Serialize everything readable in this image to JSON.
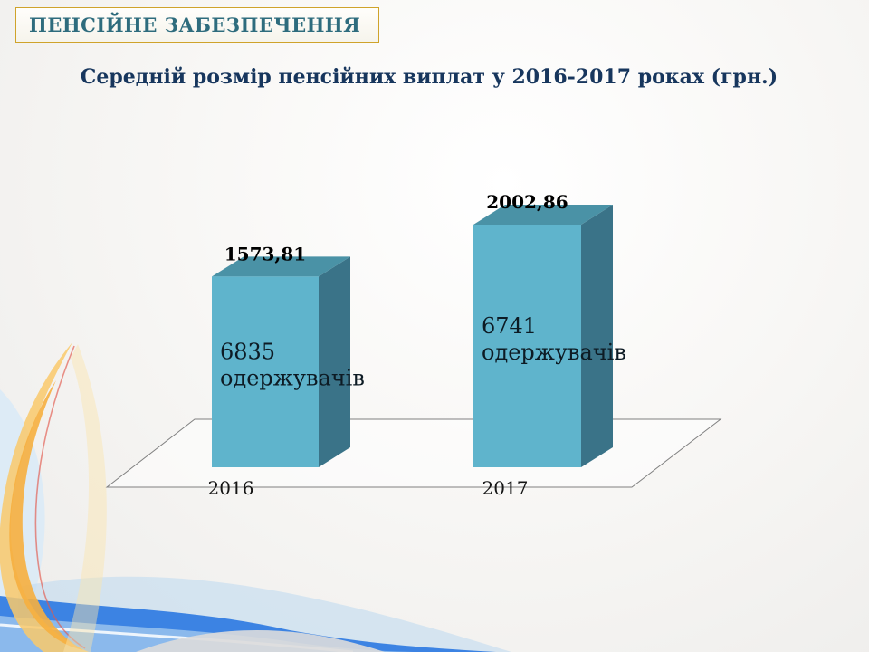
{
  "slide": {
    "header": {
      "title": "ПЕНСІЙНЕ ЗАБЕЗПЕЧЕННЯ"
    },
    "title": "Середній розмір пенсійних виплат у 2016-2017 роках (грн.)"
  },
  "colors": {
    "header_text": "#2E6C7D",
    "header_border": "#CFA32B",
    "title_text": "#17365D",
    "bar_front": "#5FB4CC",
    "bar_top": "#4A92A6",
    "bar_side": "#3A7388",
    "floor_stroke": "#808080",
    "accent_orange": "#F6AF3F",
    "accent_blue_wave": "#2F7BE2"
  },
  "chart_data": {
    "type": "bar",
    "style": "3d-column",
    "title": "Середній розмір пенсійних виплат у 2016-2017 роках (грн.)",
    "categories": [
      "2016",
      "2017"
    ],
    "values": [
      1573.81,
      2002.86
    ],
    "value_labels": [
      "1573,81",
      "2002,86"
    ],
    "bar_annotations": [
      {
        "line1": "6835",
        "line2": "одержувачів"
      },
      {
        "line1": "6741",
        "line2": "одержувачів"
      }
    ],
    "unit": "грн.",
    "ylim": [
      0,
      2100
    ],
    "legend_position": "none",
    "grid": false
  }
}
